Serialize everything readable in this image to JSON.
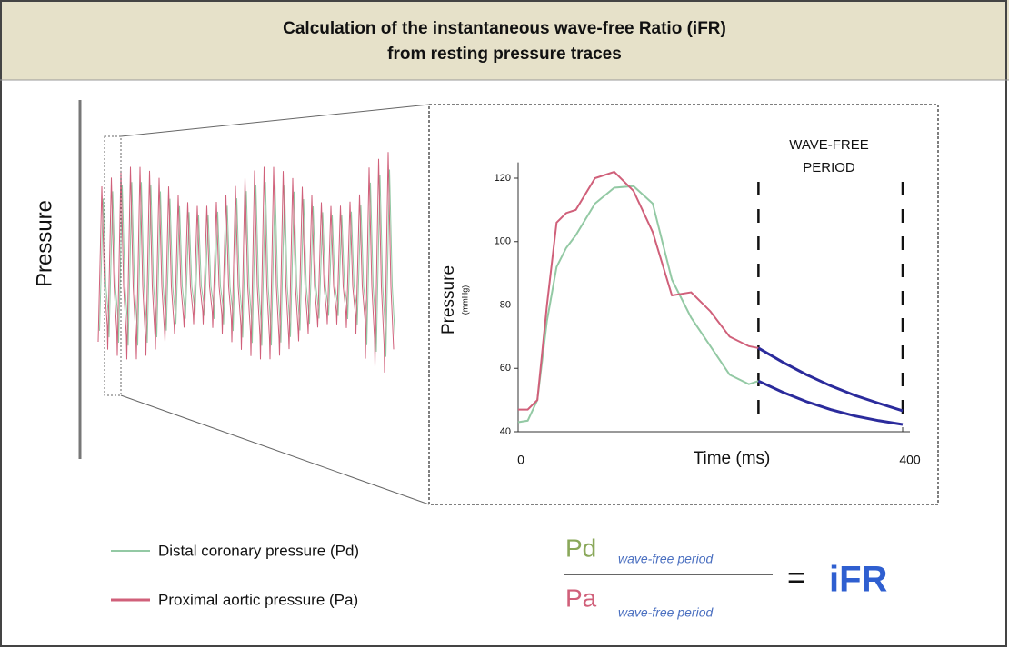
{
  "header": {
    "title_lines": [
      "Calculation of the instantaneous wave-free Ratio (iFR)",
      "from resting pressure traces"
    ]
  },
  "left_axis_label": "Pressure",
  "chart_data": {
    "type": "line",
    "y_label": "Pressure",
    "y_unit": "(mmHg)",
    "x_label": "Time (ms)",
    "annotation": [
      "WAVE-FREE",
      "PERIOD"
    ],
    "x": [
      0,
      10,
      20,
      30,
      40,
      50,
      60,
      80,
      100,
      120,
      140,
      160,
      180,
      200,
      220,
      240,
      250,
      275,
      300,
      325,
      350,
      375,
      400
    ],
    "series": [
      {
        "name": "Distal coronary pressure (Pd)",
        "color": "#93c9a4",
        "values": [
          43,
          43.5,
          50,
          75,
          92,
          98,
          102,
          112,
          117,
          117.5,
          112,
          88,
          76,
          67,
          58,
          55,
          56,
          52.5,
          49.5,
          47,
          45,
          43.5,
          42.3
        ]
      },
      {
        "name": "Proximal aortic pressure (Pa)",
        "color": "#d0607a",
        "values": [
          47,
          47,
          50,
          80,
          106,
          109,
          110,
          120,
          122,
          116,
          103,
          83,
          84,
          78,
          70,
          67,
          66.4,
          62,
          58,
          54.5,
          51.5,
          49,
          46.6
        ]
      }
    ],
    "xlim": [
      0,
      400
    ],
    "xticks": [
      0,
      400
    ],
    "ylim": [
      40,
      125
    ],
    "yticks": [
      40,
      60,
      80,
      100,
      120
    ],
    "wave_free_period": [
      250,
      400
    ],
    "wave_free_color": "#2b2b9c"
  },
  "formula": {
    "numerator": "Pd",
    "denominator": "Pa",
    "subscript": "wave-free period",
    "equals": "=",
    "result": "iFR"
  }
}
